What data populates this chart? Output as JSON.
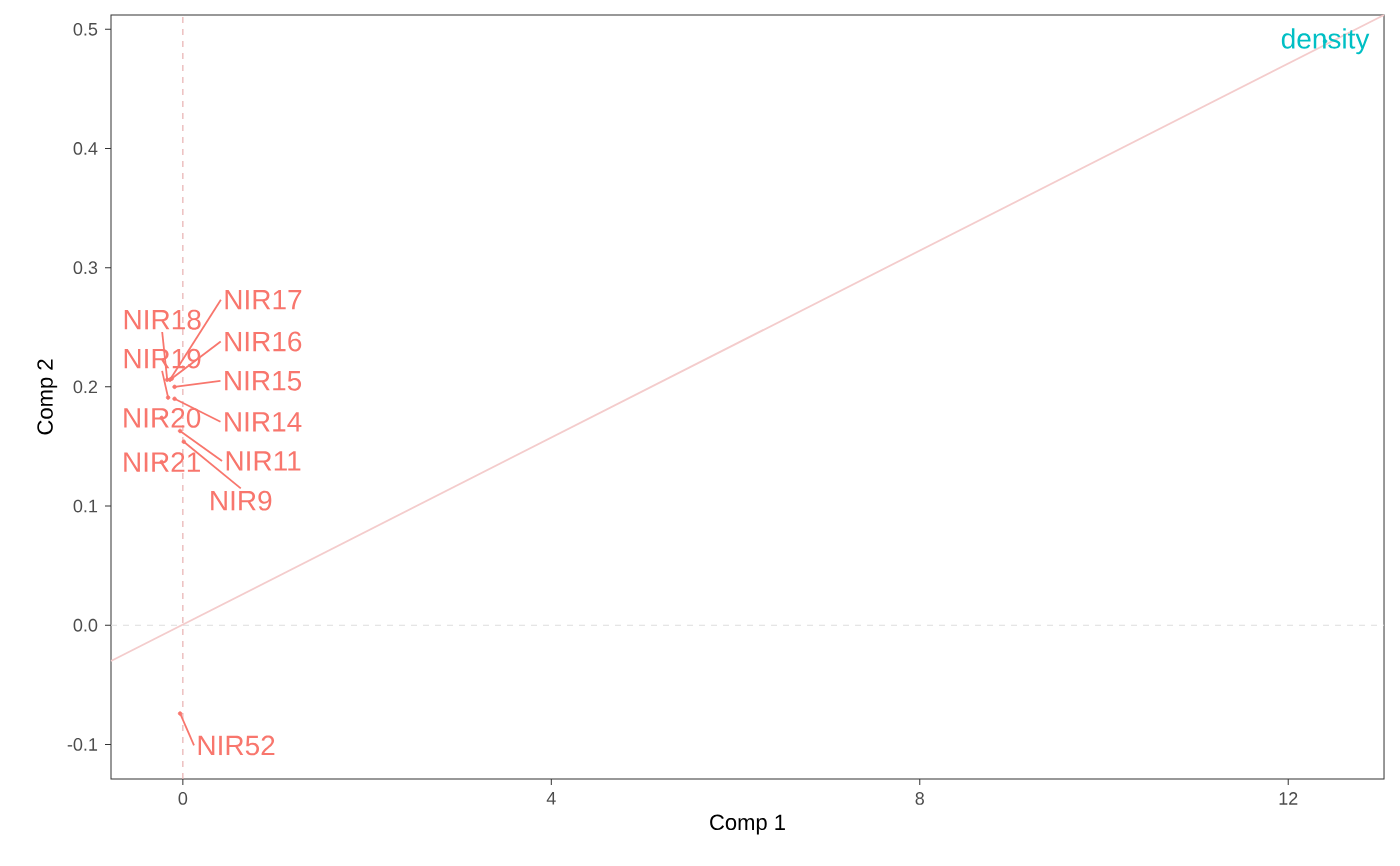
{
  "chart_data": {
    "type": "scatter",
    "xlabel": "Comp 1",
    "ylabel": "Comp 2",
    "xlim": [
      -0.78,
      13.04
    ],
    "ylim": [
      -0.129,
      0.512
    ],
    "xticks": [
      0,
      4,
      8,
      12
    ],
    "yticks": [
      -0.1,
      {
        "value": 0,
        "label": "0.0"
      },
      0.1,
      0.2,
      0.3,
      0.4,
      0.5
    ],
    "marker": "circle",
    "series": [
      {
        "type": "line",
        "marker": "none",
        "color": "#f4cccc",
        "x": [
          -0.78,
          13.04
        ],
        "values": [
          -0.03,
          0.512
        ]
      },
      {
        "color": "#f8766d",
        "x": [
          -0.14,
          -0.12,
          -0.09,
          -0.09,
          -0.03,
          0.01,
          -0.17,
          -0.16,
          -0.23,
          -0.23,
          -0.03
        ],
        "values": [
          0.206,
          0.207,
          0.2,
          0.19,
          0.163,
          0.154,
          0.206,
          0.191,
          0.174,
          0.137,
          -0.074
        ],
        "value_labels": [
          "NIR17",
          "NIR16",
          "NIR15",
          "NIR14",
          "NIR11",
          "NIR9",
          "NIR18",
          "NIR19",
          "NIR20",
          "NIR21",
          "NIR52"
        ]
      },
      {
        "color": "#00bfc4",
        "x": [
          12.4
        ],
        "values": [
          0.49
        ],
        "value_labels": [
          "density"
        ]
      }
    ],
    "ref_lines": [
      {
        "axis": "x",
        "value": 0,
        "color": "#e8b0b0",
        "line_style": "dashed"
      },
      {
        "axis": "y",
        "value": 0,
        "color": "#dddddd",
        "line_style": "dashed"
      }
    ]
  }
}
